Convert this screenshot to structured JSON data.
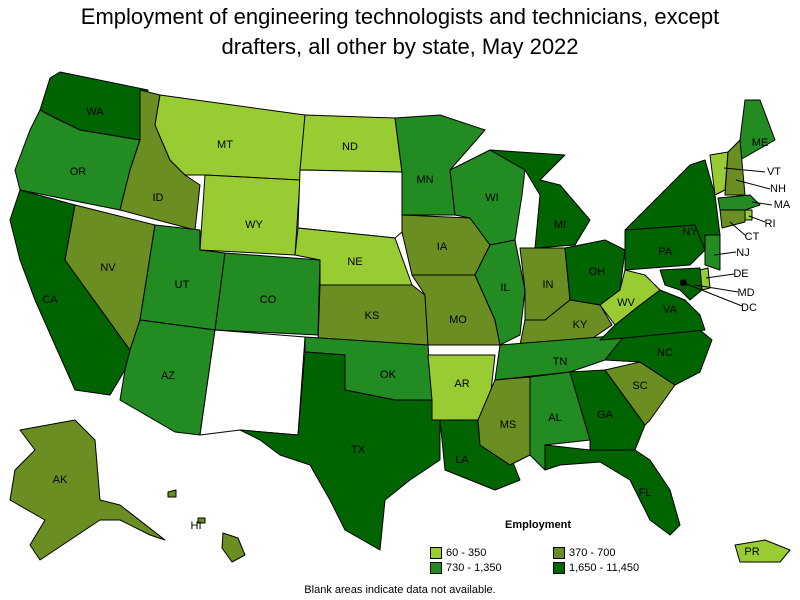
{
  "title_line1": "Employment of engineering technologists and technicians, except",
  "title_line2": "drafters, all other by state, May 2022",
  "legend": {
    "title": "Employment",
    "items": [
      {
        "label": "60 - 350",
        "color": "#99cc33"
      },
      {
        "label": "370 - 700",
        "color": "#6b8e23"
      },
      {
        "label": "730 - 1,350",
        "color": "#228b22"
      },
      {
        "label": "1,650 - 11,450",
        "color": "#006400"
      }
    ]
  },
  "footnote": "Blank areas indicate data not available.",
  "state_labels": {
    "WA": "WA",
    "OR": "OR",
    "CA": "CA",
    "ID": "ID",
    "NV": "NV",
    "MT": "MT",
    "WY": "WY",
    "UT": "UT",
    "CO": "CO",
    "AZ": "AZ",
    "ND": "ND",
    "NE": "NE",
    "KS": "KS",
    "OK": "OK",
    "TX": "TX",
    "MN": "MN",
    "IA": "IA",
    "MO": "MO",
    "AR": "AR",
    "LA": "LA",
    "WI": "WI",
    "IL": "IL",
    "MI": "MI",
    "IN": "IN",
    "OH": "OH",
    "KY": "KY",
    "TN": "TN",
    "MS": "MS",
    "AL": "AL",
    "GA": "GA",
    "FL": "FL",
    "SC": "SC",
    "NC": "NC",
    "VA": "VA",
    "WV": "WV",
    "PA": "PA",
    "NY": "NY",
    "ME": "ME",
    "VT": "VT",
    "NH": "NH",
    "MA": "MA",
    "RI": "RI",
    "CT": "CT",
    "NJ": "NJ",
    "DE": "DE",
    "MD": "MD",
    "DC": "DC",
    "AK": "AK",
    "HI": "HI",
    "PR": "PR"
  },
  "state_class": {
    "WA": 4,
    "OR": 3,
    "CA": 4,
    "ID": 2,
    "NV": 2,
    "MT": 1,
    "WY": 1,
    "UT": 3,
    "CO": 3,
    "AZ": 3,
    "NM": 0,
    "ND": 1,
    "SD": 0,
    "NE": 1,
    "KS": 2,
    "OK": 3,
    "TX": 4,
    "MN": 3,
    "IA": 2,
    "MO": 2,
    "AR": 1,
    "LA": 4,
    "WI": 3,
    "IL": 3,
    "MI": 4,
    "IN": 2,
    "OH": 4,
    "KY": 2,
    "TN": 3,
    "MS": 2,
    "AL": 3,
    "GA": 4,
    "FL": 4,
    "SC": 2,
    "NC": 4,
    "VA": 4,
    "WV": 1,
    "PA": 4,
    "NY": 4,
    "ME": 3,
    "VT": 1,
    "NH": 2,
    "MA": 3,
    "RI": 1,
    "CT": 2,
    "NJ": 3,
    "DE": 1,
    "MD": 4,
    "DC": 4,
    "AK": 2,
    "HI": 2,
    "PR": 1
  }
}
